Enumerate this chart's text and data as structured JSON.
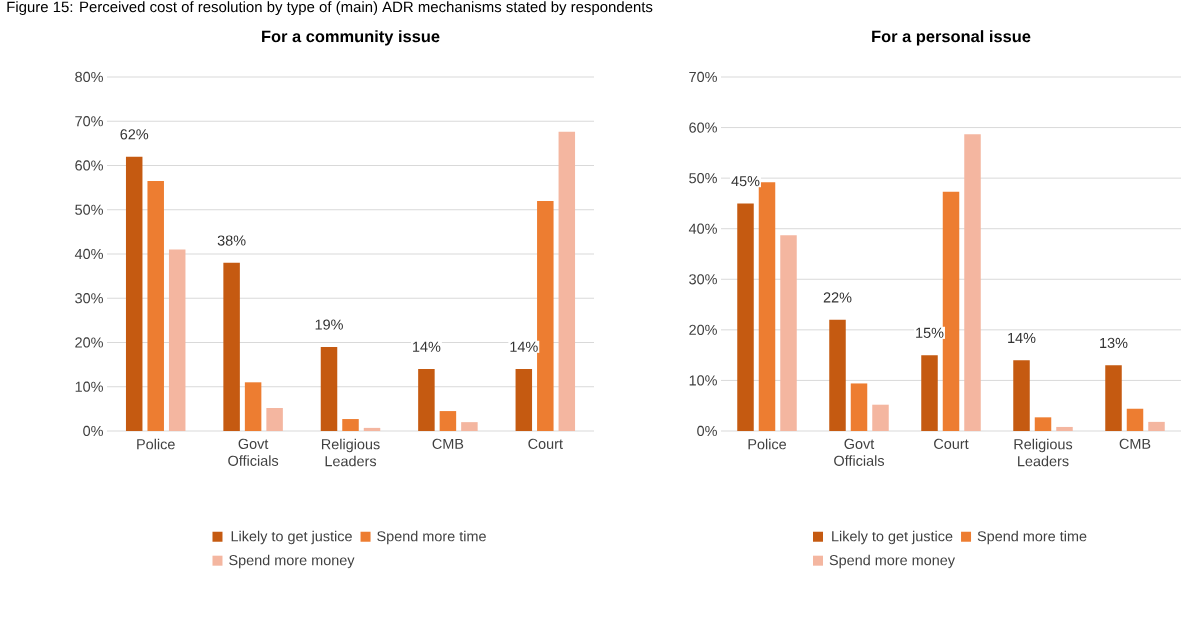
{
  "chart_data": [
    {
      "type": "bar",
      "title": "For a community issue",
      "annotations": [
        "Figure 15: Perceived cost of resolution by type of (main) ADR mechanisms stated by respondents"
      ],
      "categories": [
        "Police",
        "Govt Officials",
        "Religious Leaders",
        "CMB",
        "Court"
      ],
      "series": [
        {
          "name": "Likely to get justice",
          "color": "#c55a11",
          "values": [
            62,
            38,
            19,
            14,
            14
          ],
          "value_labels": [
            "62%",
            "38%",
            "19%",
            "14%",
            "14%"
          ]
        },
        {
          "name": "Spend more time",
          "color": "#ed7d31",
          "values": [
            56.5,
            11,
            2.7,
            4.5,
            52
          ]
        },
        {
          "name": "Spend more money",
          "color": "#f4b6a0",
          "values": [
            41,
            5.2,
            0.7,
            2,
            67.6
          ]
        }
      ],
      "ylim": [
        0,
        80
      ],
      "yticks": [
        {
          "value": 0,
          "label": "0%"
        },
        {
          "value": 10,
          "label": "10%"
        },
        {
          "value": 20,
          "label": "20%"
        },
        {
          "value": 30,
          "label": "30%"
        },
        {
          "value": 40,
          "label": "40%"
        },
        {
          "value": 50,
          "label": "50%"
        },
        {
          "value": 60,
          "label": "60%"
        },
        {
          "value": 70,
          "label": "70%"
        },
        {
          "value": 80,
          "label": "80%"
        }
      ],
      "grid": "y",
      "legend": "bottom"
    },
    {
      "type": "bar",
      "title": "For a personal issue",
      "categories": [
        "Police",
        "Govt Officials",
        "Court",
        "Religious Leaders",
        "CMB"
      ],
      "series": [
        {
          "name": "Likely to get justice",
          "color": "#c55a11",
          "values": [
            45,
            22,
            15,
            14,
            13
          ],
          "value_labels": [
            "45%",
            "22%",
            "15%",
            "14%",
            "13%"
          ]
        },
        {
          "name": "Spend more time",
          "color": "#ed7d31",
          "values": [
            49.2,
            9.4,
            47.3,
            2.7,
            4.4
          ]
        },
        {
          "name": "Spend more money",
          "color": "#f4b6a0",
          "values": [
            38.7,
            5.2,
            58.7,
            0.8,
            1.8
          ]
        }
      ],
      "ylim": [
        0,
        70
      ],
      "yticks": [
        {
          "value": 0,
          "label": "0%"
        },
        {
          "value": 10,
          "label": "10%"
        },
        {
          "value": 20,
          "label": "20%"
        },
        {
          "value": 30,
          "label": "30%"
        },
        {
          "value": 40,
          "label": "40%"
        },
        {
          "value": 50,
          "label": "50%"
        },
        {
          "value": 60,
          "label": "60%"
        },
        {
          "value": 70,
          "label": "70%"
        }
      ],
      "grid": "y",
      "legend": "bottom"
    }
  ]
}
